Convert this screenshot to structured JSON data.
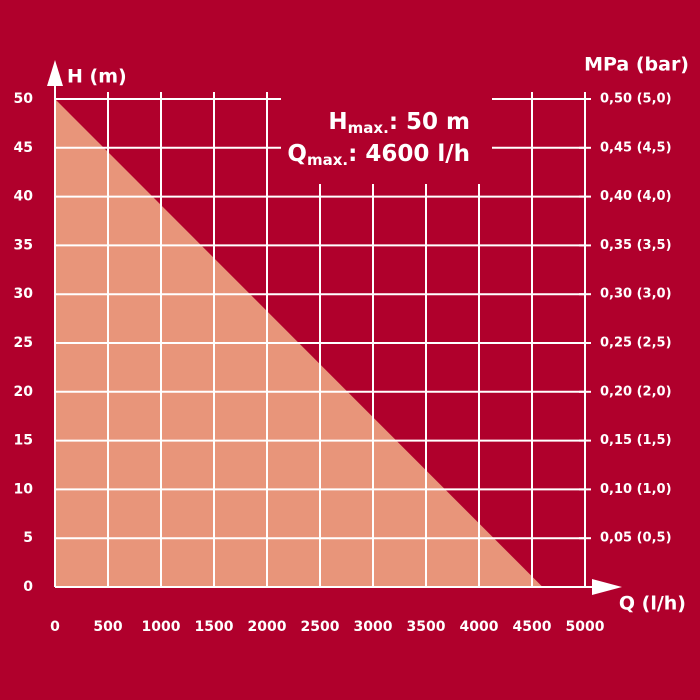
{
  "chart_data": {
    "type": "area",
    "x": [
      0,
      4600
    ],
    "values": [
      50,
      0
    ],
    "color": "#e8957a",
    "background": "#b0002c",
    "grid_color": "#ffffff",
    "grid": true,
    "y_label": "H (m)",
    "x_label": "Q (l/h)",
    "y2_label": "MPa (bar)",
    "xlim": [
      0,
      5000
    ],
    "xticks": [
      0,
      500,
      1000,
      1500,
      2000,
      2500,
      3000,
      3500,
      4000,
      4500,
      5000
    ],
    "ylim": [
      0,
      50
    ],
    "yticks": [
      0,
      5,
      10,
      15,
      20,
      25,
      30,
      35,
      40,
      45,
      50
    ],
    "y2lim": [
      0,
      0.5
    ],
    "y2ticks": [
      {
        "value": 0.05,
        "label": "0,05 (0,5)"
      },
      {
        "value": 0.1,
        "label": "0,10 (1,0)"
      },
      {
        "value": 0.15,
        "label": "0,15 (1,5)"
      },
      {
        "value": 0.2,
        "label": "0,20 (2,0)"
      },
      {
        "value": 0.25,
        "label": "0,25 (2,5)"
      },
      {
        "value": 0.3,
        "label": "0,30 (3,0)"
      },
      {
        "value": 0.35,
        "label": "0,35 (3,5)"
      },
      {
        "value": 0.4,
        "label": "0,40 (4,0)"
      },
      {
        "value": 0.45,
        "label": "0,45 (4,5)"
      },
      {
        "value": 0.5,
        "label": "0,50 (5,0)"
      }
    ],
    "annotations": [
      {
        "symbol": "H",
        "subscript": "max.",
        "text": ": 50 m"
      },
      {
        "symbol": "Q",
        "subscript": "max.",
        "text": ": 4600 l/h"
      }
    ]
  }
}
